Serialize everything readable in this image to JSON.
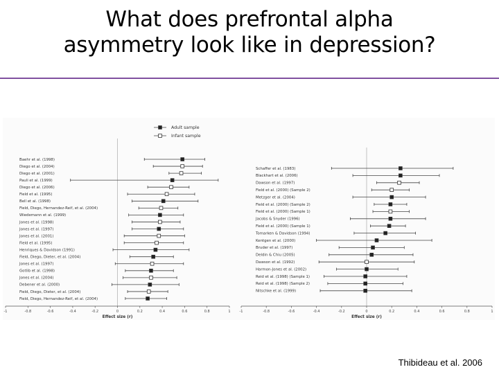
{
  "slide": {
    "title_line1": "What does prefrontal alpha",
    "title_line2": "asymmetry look like in depression?",
    "citation": "Thibideau et al. 2006",
    "accent_color": "#7f4f9f"
  },
  "chart_data": [
    {
      "type": "forest",
      "title": "",
      "xlabel": "Effect size (r)",
      "ylabel": "",
      "xlim": [
        -1,
        1
      ],
      "x_ticks": [
        "-1",
        "-0.8",
        "-0.6",
        "-0.4",
        "-0.2",
        "0",
        "0.2",
        "0.4",
        "0.6",
        "0.8",
        "1"
      ],
      "legend": [
        {
          "name": "Adult sample",
          "marker": "filled-square"
        },
        {
          "name": "Infant sample",
          "marker": "open-square"
        }
      ],
      "legend_position": "top-center",
      "studies": [
        {
          "label": "Baehr et al. (1998)",
          "effect": 0.58,
          "ci": [
            0.24,
            0.78
          ],
          "sample": "adult"
        },
        {
          "label": "Diego et al. (2004)",
          "effect": 0.58,
          "ci": [
            0.32,
            0.76
          ],
          "sample": "infant"
        },
        {
          "label": "Diego et al. (2001)",
          "effect": 0.57,
          "ci": [
            0.46,
            0.75
          ],
          "sample": "infant"
        },
        {
          "label": "Pauli et al. (1999)",
          "effect": 0.49,
          "ci": [
            -0.42,
            0.9
          ],
          "sample": "adult"
        },
        {
          "label": "Diego et al. (2006)",
          "effect": 0.48,
          "ci": [
            0.27,
            0.64
          ],
          "sample": "infant"
        },
        {
          "label": "Field et al. (1995)",
          "effect": 0.44,
          "ci": [
            0.09,
            0.69
          ],
          "sample": "infant"
        },
        {
          "label": "Bell et al. (1998)",
          "effect": 0.41,
          "ci": [
            0.13,
            0.72
          ],
          "sample": "adult"
        },
        {
          "label": "Field, Diego, Hernandez-Reif, et al. (2004)",
          "effect": 0.39,
          "ci": [
            0.19,
            0.54
          ],
          "sample": "infant"
        },
        {
          "label": "Wiedemann et al. (1999)",
          "effect": 0.38,
          "ci": [
            0.1,
            0.59
          ],
          "sample": "adult"
        },
        {
          "label": "Jones et al. (1998)",
          "effect": 0.38,
          "ci": [
            0.13,
            0.56
          ],
          "sample": "infant"
        },
        {
          "label": "Jones et al. (1997)",
          "effect": 0.37,
          "ci": [
            0.13,
            0.59
          ],
          "sample": "adult"
        },
        {
          "label": "Jones et al. (2001)",
          "effect": 0.37,
          "ci": [
            0.06,
            0.6
          ],
          "sample": "infant"
        },
        {
          "label": "Field et al. (1995)",
          "effect": 0.35,
          "ci": [
            0.06,
            0.59
          ],
          "sample": "infant"
        },
        {
          "label": "Henriques & Davidson (1991)",
          "effect": 0.34,
          "ci": [
            -0.04,
            0.64
          ],
          "sample": "adult"
        },
        {
          "label": "Field, Diego, Dieter, et al. (2004)",
          "effect": 0.32,
          "ci": [
            0.11,
            0.5
          ],
          "sample": "adult"
        },
        {
          "label": "Jones et al. (1997)",
          "effect": 0.31,
          "ci": [
            -0.02,
            0.59
          ],
          "sample": "infant"
        },
        {
          "label": "Gotlib et al. (1998)",
          "effect": 0.3,
          "ci": [
            0.07,
            0.5
          ],
          "sample": "adult"
        },
        {
          "label": "Jones et al. (2004)",
          "effect": 0.3,
          "ci": [
            0.05,
            0.53
          ],
          "sample": "infant"
        },
        {
          "label": "Debener et al. (2000)",
          "effect": 0.29,
          "ci": [
            -0.05,
            0.55
          ],
          "sample": "adult"
        },
        {
          "label": "Field, Diego, Dieter, et al. (2004)",
          "effect": 0.28,
          "ci": [
            0.09,
            0.45
          ],
          "sample": "infant"
        },
        {
          "label": "Field, Diego, Hernandez-Reif, et al. (2004)",
          "effect": 0.27,
          "ci": [
            0.07,
            0.44
          ],
          "sample": "adult"
        }
      ]
    },
    {
      "type": "forest",
      "title": "",
      "xlabel": "Effect size (r)",
      "ylabel": "",
      "xlim": [
        -1,
        1
      ],
      "x_ticks": [
        "-1",
        "-0.8",
        "-0.6",
        "-0.4",
        "-0.2",
        "0",
        "0.2",
        "0.4",
        "0.6",
        "0.8",
        "1"
      ],
      "studies": [
        {
          "label": "Schaffer et al. (1983)",
          "effect": 0.27,
          "ci": [
            -0.28,
            0.69
          ],
          "sample": "adult"
        },
        {
          "label": "Blackhart et al. (2006)",
          "effect": 0.27,
          "ci": [
            -0.11,
            0.58
          ],
          "sample": "adult"
        },
        {
          "label": "Dawson et al. (1997)",
          "effect": 0.26,
          "ci": [
            0.08,
            0.42
          ],
          "sample": "infant"
        },
        {
          "label": "Field et al. (2000) (Sample 2)",
          "effect": 0.2,
          "ci": [
            0.04,
            0.34
          ],
          "sample": "infant"
        },
        {
          "label": "Metzger et al. (2004)",
          "effect": 0.2,
          "ci": [
            -0.11,
            0.47
          ],
          "sample": "adult"
        },
        {
          "label": "Field et al. (2000) (Sample 2)",
          "effect": 0.19,
          "ci": [
            0.06,
            0.32
          ],
          "sample": "adult"
        },
        {
          "label": "Field et al. (2000) (Sample 1)",
          "effect": 0.19,
          "ci": [
            0.05,
            0.34
          ],
          "sample": "infant"
        },
        {
          "label": "Jacobs & Snyder (1996)",
          "effect": 0.19,
          "ci": [
            -0.13,
            0.47
          ],
          "sample": "adult"
        },
        {
          "label": "Field et al. (2000) (Sample 1)",
          "effect": 0.18,
          "ci": [
            0.03,
            0.31
          ],
          "sample": "adult"
        },
        {
          "label": "Tomarken & Davidson (1994)",
          "effect": 0.15,
          "ci": [
            -0.1,
            0.39
          ],
          "sample": "adult"
        },
        {
          "label": "Kentgen et al. (2000)",
          "effect": 0.08,
          "ci": [
            -0.4,
            0.52
          ],
          "sample": "adult"
        },
        {
          "label": "Bruder et al. (1997)",
          "effect": 0.05,
          "ci": [
            -0.22,
            0.3
          ],
          "sample": "adult"
        },
        {
          "label": "Deldin & Chiu (2005)",
          "effect": 0.04,
          "ci": [
            -0.3,
            0.37
          ],
          "sample": "adult"
        },
        {
          "label": "Dawson et al. (1992)",
          "effect": 0.0,
          "ci": [
            -0.38,
            0.38
          ],
          "sample": "infant"
        },
        {
          "label": "Harmon-Jones et al. (2002)",
          "effect": 0.0,
          "ci": [
            -0.24,
            0.25
          ],
          "sample": "adult"
        },
        {
          "label": "Reid et al. (1998) (Sample 1)",
          "effect": -0.01,
          "ci": [
            -0.34,
            0.32
          ],
          "sample": "adult"
        },
        {
          "label": "Reid et al. (1998) (Sample 2)",
          "effect": -0.01,
          "ci": [
            -0.31,
            0.29
          ],
          "sample": "adult"
        },
        {
          "label": "Nitschke et al. (1999)",
          "effect": -0.01,
          "ci": [
            -0.37,
            0.36
          ],
          "sample": "adult"
        }
      ]
    }
  ]
}
